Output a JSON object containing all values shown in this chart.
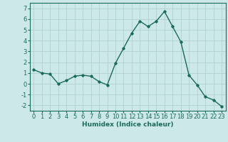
{
  "x": [
    0,
    1,
    2,
    3,
    4,
    5,
    6,
    7,
    8,
    9,
    10,
    11,
    12,
    13,
    14,
    15,
    16,
    17,
    18,
    19,
    20,
    21,
    22,
    23
  ],
  "y": [
    1.3,
    1.0,
    0.9,
    0.0,
    0.3,
    0.7,
    0.8,
    0.7,
    0.2,
    -0.1,
    1.9,
    3.3,
    4.7,
    5.8,
    5.3,
    5.8,
    6.7,
    5.3,
    3.9,
    0.8,
    -0.1,
    -1.2,
    -1.5,
    -2.1
  ],
  "line_color": "#1a6b5a",
  "marker": "D",
  "marker_size": 1.8,
  "linewidth": 1.0,
  "bg_color": "#cce8e8",
  "grid_color": "#b0d0d0",
  "xlabel": "Humidex (Indice chaleur)",
  "xlabel_fontsize": 6.5,
  "tick_fontsize": 6.0,
  "ylim": [
    -2.5,
    7.5
  ],
  "yticks": [
    -2,
    -1,
    0,
    1,
    2,
    3,
    4,
    5,
    6,
    7
  ],
  "xlim": [
    -0.5,
    23.5
  ],
  "xticks": [
    0,
    1,
    2,
    3,
    4,
    5,
    6,
    7,
    8,
    9,
    10,
    11,
    12,
    13,
    14,
    15,
    16,
    17,
    18,
    19,
    20,
    21,
    22,
    23
  ]
}
